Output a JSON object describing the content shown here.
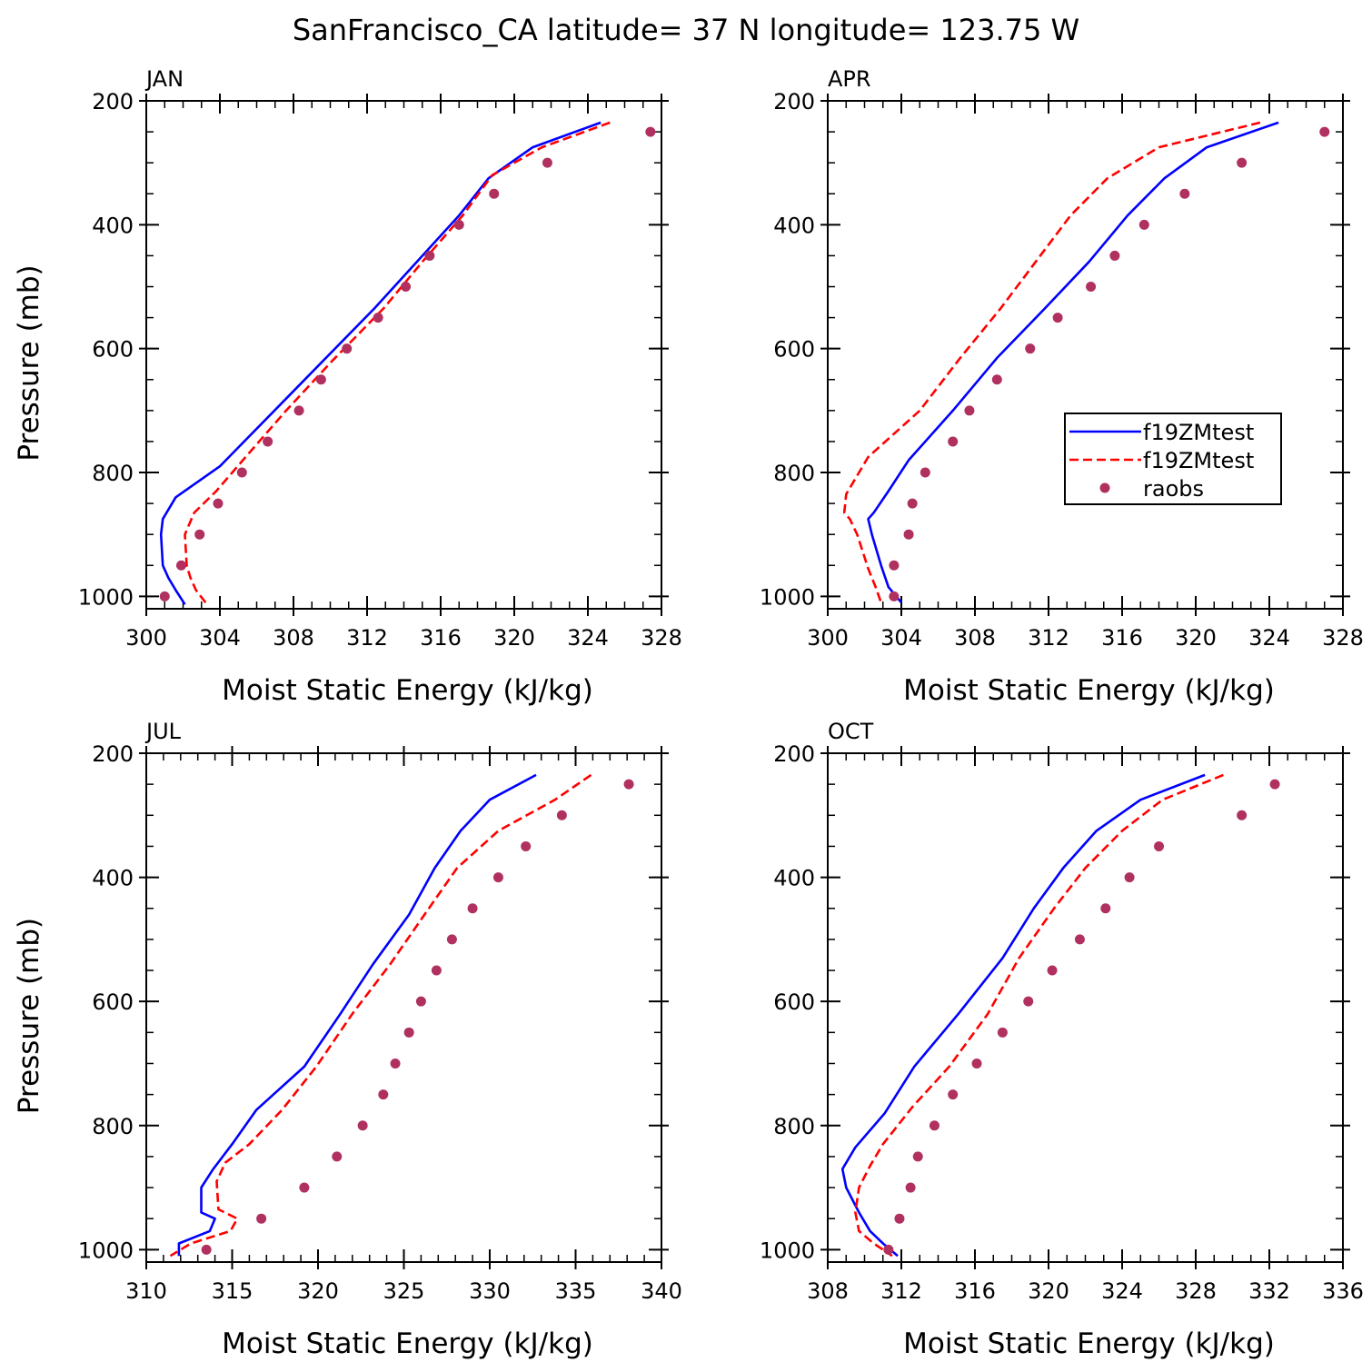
{
  "title": "SanFrancisco_CA  latitude= 37 N longitude= 123.75 W",
  "colors": {
    "model1": "#0000ff",
    "model2": "#ff0000",
    "raobs": "#b03060",
    "axis": "#000000"
  },
  "legend": {
    "panel": "APR",
    "entries": [
      {
        "label": "f19ZMtest",
        "style": "solid",
        "color": "#0000ff"
      },
      {
        "label": "f19ZMtest",
        "style": "dashed",
        "color": "#ff0000"
      },
      {
        "label": "raobs",
        "style": "dot",
        "color": "#b03060"
      }
    ]
  },
  "chart_data": [
    {
      "type": "line",
      "panel": "JAN",
      "xlabel": "Moist Static Energy (kJ/kg)",
      "ylabel": "Pressure (mb)",
      "xlim": [
        300,
        328
      ],
      "xticks": [
        300,
        304,
        308,
        312,
        316,
        320,
        324,
        328
      ],
      "xminor": 1,
      "ylim": [
        1020,
        200
      ],
      "yticks": [
        200,
        400,
        600,
        800,
        1000
      ],
      "yminor": 50,
      "series": [
        {
          "name": "f19ZMtest",
          "style": "solid",
          "x": [
            324.7,
            321.0,
            318.6,
            317.0,
            314.7,
            312.4,
            309.6,
            306.8,
            304.0,
            301.6,
            300.9,
            300.8,
            300.9,
            301.2,
            301.6,
            302.1
          ],
          "y": [
            235,
            275,
            325,
            385,
            460,
            535,
            620,
            705,
            790,
            840,
            875,
            900,
            950,
            970,
            990,
            1013
          ]
        },
        {
          "name": "f19ZMtest",
          "style": "dashed",
          "x": [
            325.2,
            321.5,
            318.8,
            317.2,
            315.0,
            312.9,
            310.1,
            307.6,
            305.4,
            303.8,
            302.6,
            302.1,
            302.2,
            302.4,
            302.7,
            303.3
          ],
          "y": [
            235,
            275,
            320,
            385,
            460,
            535,
            620,
            700,
            775,
            830,
            865,
            900,
            950,
            970,
            990,
            1013
          ]
        },
        {
          "name": "raobs",
          "style": "dot",
          "x": [
            327.4,
            321.8,
            318.9,
            317.0,
            315.4,
            314.1,
            312.6,
            310.9,
            309.5,
            308.3,
            306.6,
            305.2,
            303.9,
            302.9,
            301.9,
            301.0
          ],
          "y": [
            250,
            300,
            350,
            400,
            450,
            500,
            550,
            600,
            650,
            700,
            750,
            800,
            850,
            900,
            950,
            1000
          ]
        }
      ]
    },
    {
      "type": "line",
      "panel": "APR",
      "xlabel": "Moist Static Energy (kJ/kg)",
      "ylabel": "",
      "xlim": [
        300,
        328
      ],
      "xticks": [
        300,
        304,
        308,
        312,
        316,
        320,
        324,
        328
      ],
      "xminor": 1,
      "ylim": [
        1020,
        200
      ],
      "yticks": [
        200,
        400,
        600,
        800,
        1000
      ],
      "yminor": 50,
      "series": [
        {
          "name": "f19ZMtest",
          "style": "solid",
          "x": [
            324.5,
            320.6,
            318.3,
            316.3,
            314.2,
            311.8,
            309.2,
            306.8,
            304.4,
            303.3,
            302.5,
            302.2,
            302.4,
            302.9,
            303.3,
            304.0
          ],
          "y": [
            235,
            275,
            325,
            385,
            460,
            535,
            615,
            700,
            780,
            830,
            865,
            875,
            900,
            950,
            985,
            1010
          ]
        },
        {
          "name": "f19ZMtest",
          "style": "dashed",
          "x": [
            323.5,
            318.0,
            315.2,
            313.2,
            311.3,
            309.4,
            307.2,
            305.0,
            302.2,
            301.0,
            300.9,
            301.2,
            301.6,
            302.2,
            302.6,
            302.9
          ],
          "y": [
            235,
            275,
            325,
            385,
            460,
            535,
            615,
            700,
            775,
            835,
            865,
            875,
            900,
            955,
            985,
            1010
          ]
        },
        {
          "name": "raobs",
          "style": "dot",
          "x": [
            327.0,
            322.5,
            319.4,
            317.2,
            315.6,
            314.3,
            312.5,
            311.0,
            309.2,
            307.7,
            306.8,
            305.3,
            304.6,
            304.4,
            303.6,
            303.6
          ],
          "y": [
            250,
            300,
            350,
            400,
            450,
            500,
            550,
            600,
            650,
            700,
            750,
            800,
            850,
            900,
            950,
            1000
          ]
        }
      ]
    },
    {
      "type": "line",
      "panel": "JUL",
      "xlabel": "Moist Static Energy (kJ/kg)",
      "ylabel": "Pressure (mb)",
      "xlim": [
        310,
        340
      ],
      "xticks": [
        310,
        315,
        320,
        325,
        330,
        335,
        340
      ],
      "xminor": 1,
      "ylim": [
        1020,
        200
      ],
      "yticks": [
        200,
        400,
        600,
        800,
        1000
      ],
      "yminor": 50,
      "series": [
        {
          "name": "f19ZMtest",
          "style": "solid",
          "x": [
            332.7,
            330.0,
            328.3,
            326.8,
            325.3,
            323.2,
            321.3,
            319.2,
            316.4,
            315.0,
            313.9,
            313.2,
            313.2,
            314.0,
            313.7,
            311.9,
            311.9
          ],
          "y": [
            235,
            275,
            325,
            385,
            460,
            540,
            620,
            705,
            775,
            830,
            870,
            900,
            940,
            950,
            970,
            990,
            1010
          ]
        },
        {
          "name": "f19ZMtest",
          "style": "dashed",
          "x": [
            335.9,
            333.8,
            330.5,
            328.1,
            326.2,
            324.2,
            322.0,
            319.9,
            317.9,
            316.0,
            314.6,
            314.1,
            314.2,
            315.3,
            314.9,
            312.6,
            311.4
          ],
          "y": [
            235,
            275,
            325,
            385,
            460,
            540,
            620,
            705,
            775,
            830,
            860,
            890,
            935,
            950,
            970,
            990,
            1010
          ]
        },
        {
          "name": "raobs",
          "style": "dot",
          "x": [
            338.1,
            334.2,
            332.1,
            330.5,
            329.0,
            327.8,
            326.9,
            326.0,
            325.3,
            324.5,
            323.8,
            322.6,
            321.1,
            319.2,
            316.7,
            313.5
          ],
          "y": [
            250,
            300,
            350,
            400,
            450,
            500,
            550,
            600,
            650,
            700,
            750,
            800,
            850,
            900,
            950,
            1000
          ]
        }
      ]
    },
    {
      "type": "line",
      "panel": "OCT",
      "xlabel": "Moist Static Energy (kJ/kg)",
      "ylabel": "",
      "xlim": [
        308,
        336
      ],
      "xticks": [
        308,
        312,
        316,
        320,
        324,
        328,
        332,
        336
      ],
      "xminor": 1,
      "ylim": [
        1020,
        200
      ],
      "yticks": [
        200,
        400,
        600,
        800,
        1000
      ],
      "yminor": 50,
      "series": [
        {
          "name": "f19ZMtest",
          "style": "solid",
          "x": [
            328.5,
            325.0,
            322.6,
            320.8,
            319.2,
            317.5,
            315.1,
            312.7,
            311.1,
            309.5,
            308.8,
            309.0,
            309.7,
            310.3,
            311.0,
            311.8
          ],
          "y": [
            235,
            275,
            325,
            385,
            450,
            530,
            620,
            705,
            780,
            835,
            870,
            900,
            940,
            970,
            990,
            1010
          ]
        },
        {
          "name": "f19ZMtest",
          "style": "dashed",
          "x": [
            329.5,
            326.2,
            324.0,
            322.0,
            320.3,
            318.4,
            316.7,
            314.6,
            312.6,
            311.0,
            310.3,
            309.7,
            309.5,
            309.7,
            310.5,
            311.5
          ],
          "y": [
            235,
            275,
            325,
            385,
            450,
            530,
            620,
            705,
            770,
            830,
            865,
            900,
            940,
            970,
            990,
            1010
          ]
        },
        {
          "name": "raobs",
          "style": "dot",
          "x": [
            332.3,
            330.5,
            326.0,
            324.4,
            323.1,
            321.7,
            320.2,
            318.9,
            317.5,
            316.1,
            314.8,
            313.8,
            312.9,
            312.5,
            311.9,
            311.3
          ],
          "y": [
            250,
            300,
            350,
            400,
            450,
            500,
            550,
            600,
            650,
            700,
            750,
            800,
            850,
            900,
            950,
            1000
          ]
        }
      ]
    }
  ]
}
